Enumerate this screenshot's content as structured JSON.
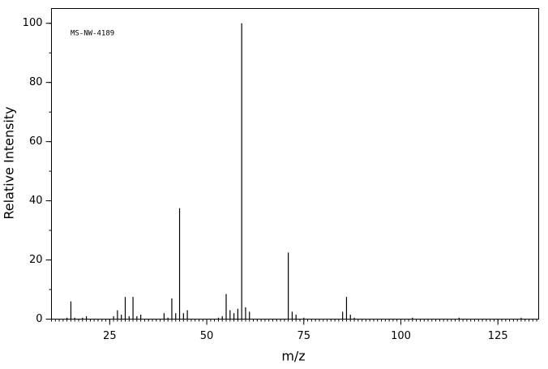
{
  "chart_data": {
    "type": "stem",
    "annotation": "MS-NW-4189",
    "x_label": "m/z",
    "y_label": "Relative Intensity",
    "x": [
      14,
      15,
      16,
      18,
      19,
      26,
      27,
      28,
      29,
      30,
      31,
      32,
      33,
      39,
      40,
      41,
      42,
      43,
      44,
      45,
      53,
      54,
      55,
      56,
      57,
      58,
      59,
      60,
      61,
      71,
      72,
      73,
      75,
      85,
      86,
      87,
      88,
      103,
      115,
      131
    ],
    "values": [
      0.5,
      6,
      0.5,
      0.5,
      1,
      1,
      3,
      1.5,
      7.5,
      1,
      7.5,
      1,
      1.5,
      2,
      0.5,
      7,
      2,
      37.5,
      2,
      3,
      0.5,
      1,
      8.5,
      3,
      2,
      3.5,
      100,
      4,
      2.5,
      22.5,
      2.5,
      1.5,
      0.5,
      2.5,
      7.5,
      1.5,
      0.5,
      0.5,
      0.5,
      0.5
    ],
    "color": "#000000",
    "xlim": [
      10,
      135.5
    ],
    "ylim": [
      0,
      105
    ],
    "xticks": [
      25,
      50,
      75,
      100,
      125
    ],
    "yticks": [
      0,
      20,
      40,
      60,
      80,
      100
    ]
  }
}
